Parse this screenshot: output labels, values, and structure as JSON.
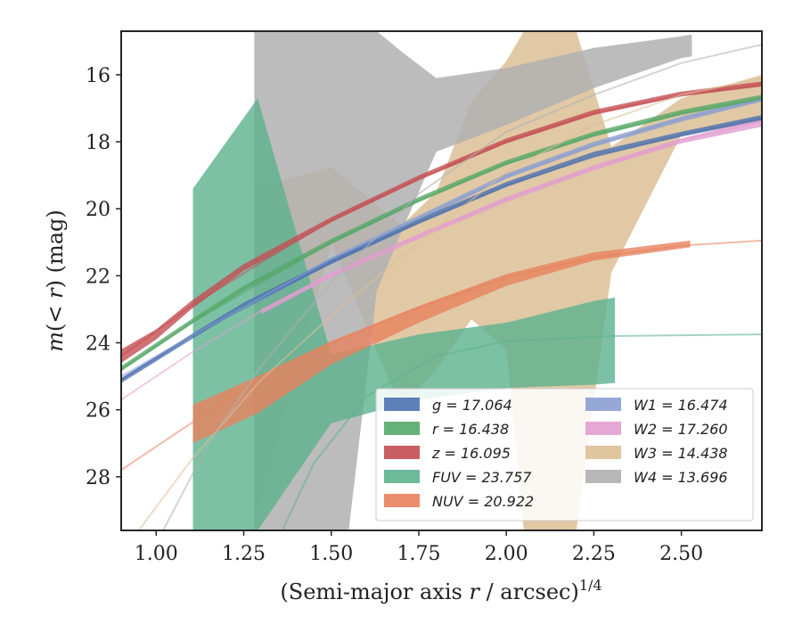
{
  "chart_data": {
    "type": "area",
    "xlabel_main": "(Semi-major axis ",
    "xlabel_var": "r",
    "xlabel_unit": " / arcsec)",
    "xlabel_exp": "1/4",
    "ylabel_m": "m",
    "ylabel_inner": "(< ",
    "ylabel_var": "r",
    "ylabel_close": ")",
    "ylabel_unit": " (mag)",
    "xlim": [
      0.9,
      2.73
    ],
    "ylim": [
      29.6,
      14.7
    ],
    "y_inverted": true,
    "grid": false,
    "legend_position": "lower-right",
    "x_ticks": [
      1.0,
      1.25,
      1.5,
      1.75,
      2.0,
      2.25,
      2.5
    ],
    "x_tick_labels": [
      "1.00",
      "1.25",
      "1.50",
      "1.75",
      "2.00",
      "2.25",
      "2.50"
    ],
    "y_ticks": [
      16,
      18,
      20,
      22,
      24,
      26,
      28
    ],
    "y_tick_labels": [
      "16",
      "18",
      "20",
      "22",
      "24",
      "26",
      "28"
    ],
    "series": [
      {
        "name": "g",
        "label": "g = 17.064",
        "color": "#4c72b0",
        "band": [
          [
            0.9,
            25.2,
            25.05
          ],
          [
            1.0,
            24.55,
            24.4
          ],
          [
            1.1,
            23.9,
            23.75
          ],
          [
            1.25,
            22.95,
            22.8
          ],
          [
            1.5,
            21.65,
            21.5
          ],
          [
            1.75,
            20.45,
            20.3
          ],
          [
            2.0,
            19.35,
            19.2
          ],
          [
            2.25,
            18.45,
            18.3
          ],
          [
            2.5,
            17.85,
            17.7
          ],
          [
            2.73,
            17.35,
            17.2
          ]
        ],
        "model": [
          [
            0.9,
            25.1
          ],
          [
            1.1,
            23.8
          ],
          [
            1.3,
            22.7
          ],
          [
            1.5,
            21.6
          ],
          [
            1.75,
            20.4
          ],
          [
            2.0,
            19.3
          ],
          [
            2.25,
            18.45
          ],
          [
            2.5,
            17.8
          ],
          [
            2.73,
            17.3
          ]
        ]
      },
      {
        "name": "r",
        "label": "r = 16.438",
        "color": "#55a868",
        "band": [
          [
            0.9,
            24.85,
            24.7
          ],
          [
            1.0,
            24.15,
            24.0
          ],
          [
            1.1,
            23.45,
            23.3
          ],
          [
            1.25,
            22.45,
            22.3
          ],
          [
            1.5,
            21.05,
            20.9
          ],
          [
            1.75,
            19.8,
            19.65
          ],
          [
            2.0,
            18.7,
            18.55
          ],
          [
            2.25,
            17.85,
            17.7
          ],
          [
            2.5,
            17.2,
            17.05
          ],
          [
            2.73,
            16.75,
            16.6
          ]
        ],
        "model": [
          [
            0.9,
            24.8
          ],
          [
            1.1,
            23.4
          ],
          [
            1.3,
            22.2
          ],
          [
            1.5,
            21.0
          ],
          [
            1.75,
            19.75
          ],
          [
            2.0,
            18.65
          ],
          [
            2.25,
            17.8
          ],
          [
            2.5,
            17.15
          ],
          [
            2.73,
            16.7
          ]
        ]
      },
      {
        "name": "z",
        "label": "z = 16.095",
        "color": "#c44e52",
        "band": [
          [
            0.9,
            24.6,
            24.2
          ],
          [
            1.0,
            23.9,
            23.6
          ],
          [
            1.1,
            23.0,
            22.75
          ],
          [
            1.25,
            21.85,
            21.65
          ],
          [
            1.5,
            20.4,
            20.25
          ],
          [
            1.75,
            19.15,
            19.0
          ],
          [
            2.0,
            18.05,
            17.9
          ],
          [
            2.25,
            17.2,
            17.05
          ],
          [
            2.5,
            16.65,
            16.5
          ],
          [
            2.73,
            16.35,
            16.2
          ]
        ],
        "model": [
          [
            0.9,
            24.4
          ],
          [
            1.1,
            22.9
          ],
          [
            1.3,
            21.6
          ],
          [
            1.5,
            20.35
          ],
          [
            1.75,
            19.1
          ],
          [
            2.0,
            18.0
          ],
          [
            2.25,
            17.15
          ],
          [
            2.5,
            16.6
          ],
          [
            2.73,
            16.3
          ]
        ]
      },
      {
        "name": "FUV",
        "label": "FUV = 23.757",
        "color": "#5db18f",
        "band": [
          [
            1.105,
            29.6,
            19.4
          ],
          [
            1.29,
            29.6,
            16.7
          ],
          [
            1.5,
            26.4,
            24.35
          ],
          [
            1.75,
            25.7,
            23.75
          ],
          [
            2.0,
            25.35,
            23.4
          ],
          [
            2.25,
            25.25,
            22.75
          ],
          [
            2.31,
            25.2,
            22.65
          ]
        ],
        "model": [
          [
            1.36,
            29.6
          ],
          [
            1.45,
            27.6
          ],
          [
            1.6,
            25.6
          ],
          [
            1.8,
            24.4
          ],
          [
            2.0,
            23.95
          ],
          [
            2.3,
            23.8
          ],
          [
            2.73,
            23.75
          ]
        ]
      },
      {
        "name": "NUV",
        "label": "NUV = 20.922",
        "color": "#e8825e",
        "band": [
          [
            1.105,
            27.0,
            25.85
          ],
          [
            1.29,
            26.1,
            25.0
          ],
          [
            1.5,
            24.65,
            23.95
          ],
          [
            1.75,
            23.4,
            22.9
          ],
          [
            2.0,
            22.3,
            21.95
          ],
          [
            2.25,
            21.55,
            21.3
          ],
          [
            2.525,
            21.15,
            20.95
          ]
        ],
        "model": [
          [
            0.9,
            27.8
          ],
          [
            1.1,
            26.4
          ],
          [
            1.3,
            25.0
          ],
          [
            1.5,
            24.0
          ],
          [
            1.75,
            22.95
          ],
          [
            2.0,
            22.05
          ],
          [
            2.25,
            21.45
          ],
          [
            2.5,
            21.1
          ],
          [
            2.73,
            20.95
          ]
        ]
      },
      {
        "name": "W1",
        "label": "W1 = 16.474",
        "color": "#8b9fd1",
        "band": [
          [
            1.3,
            22.75,
            22.6
          ],
          [
            1.5,
            21.6,
            21.45
          ],
          [
            1.75,
            20.35,
            20.2
          ],
          [
            2.0,
            19.1,
            18.95
          ],
          [
            2.25,
            18.15,
            18.0
          ],
          [
            2.5,
            17.4,
            17.25
          ],
          [
            2.73,
            16.8,
            16.65
          ]
        ],
        "model": [
          [
            0.9,
            25.0
          ],
          [
            1.1,
            23.8
          ],
          [
            1.3,
            22.65
          ],
          [
            1.5,
            21.5
          ],
          [
            1.75,
            20.3
          ],
          [
            2.0,
            19.05
          ],
          [
            2.25,
            18.1
          ],
          [
            2.5,
            17.3
          ],
          [
            2.73,
            16.75
          ]
        ]
      },
      {
        "name": "W2",
        "label": "W2 = 17.260",
        "color": "#e29ed0",
        "band": [
          [
            1.3,
            23.15,
            23.0
          ],
          [
            1.5,
            22.05,
            21.9
          ],
          [
            1.75,
            20.9,
            20.75
          ],
          [
            2.0,
            19.8,
            19.65
          ],
          [
            2.25,
            18.85,
            18.7
          ],
          [
            2.5,
            18.05,
            17.9
          ],
          [
            2.73,
            17.55,
            17.3
          ]
        ],
        "model": [
          [
            0.9,
            25.7
          ],
          [
            1.1,
            24.3
          ],
          [
            1.3,
            23.05
          ],
          [
            1.5,
            21.95
          ],
          [
            1.75,
            20.8
          ],
          [
            2.0,
            19.7
          ],
          [
            2.25,
            18.8
          ],
          [
            2.5,
            17.95
          ],
          [
            2.73,
            17.4
          ]
        ]
      },
      {
        "name": "W3",
        "label": "W3 = 14.438",
        "color": "#dcbf96",
        "band": [
          [
            1.28,
            29.6,
            19.4
          ],
          [
            1.5,
            21.0,
            18.75
          ],
          [
            1.7,
            26.0,
            20.5
          ],
          [
            1.8,
            24.8,
            19.5
          ],
          [
            1.9,
            23.3,
            16.8
          ],
          [
            2.0,
            24.2,
            15.6
          ],
          [
            2.05,
            29.6,
            14.7
          ],
          [
            2.2,
            29.6,
            14.7
          ],
          [
            2.3,
            21.9,
            18.15
          ],
          [
            2.5,
            17.8,
            16.7
          ],
          [
            2.73,
            17.4,
            16.0
          ]
        ],
        "model": [
          [
            0.9,
            30.3
          ],
          [
            1.1,
            27.5
          ],
          [
            1.3,
            25.1
          ],
          [
            1.5,
            23.2
          ],
          [
            1.75,
            21.0
          ],
          [
            2.0,
            18.9
          ],
          [
            2.25,
            17.5
          ],
          [
            2.5,
            16.6
          ],
          [
            2.73,
            16.1
          ]
        ]
      },
      {
        "name": "W4",
        "label": "W4 = 13.696",
        "color": "#b0b0b0",
        "band": [
          [
            1.28,
            29.6,
            14.7
          ],
          [
            1.45,
            29.6,
            14.7
          ],
          [
            1.55,
            29.6,
            14.7
          ],
          [
            1.63,
            22.45,
            14.7
          ],
          [
            1.7,
            20.7,
            15.3
          ],
          [
            1.8,
            18.3,
            16.1
          ],
          [
            2.0,
            17.5,
            15.8
          ],
          [
            2.25,
            16.4,
            15.2
          ],
          [
            2.5,
            15.5,
            14.85
          ],
          [
            2.53,
            15.45,
            14.8
          ]
        ],
        "model": [
          [
            1.02,
            29.6
          ],
          [
            1.15,
            27.0
          ],
          [
            1.3,
            24.7
          ],
          [
            1.5,
            22.2
          ],
          [
            1.75,
            19.55
          ],
          [
            2.0,
            17.7
          ],
          [
            2.25,
            16.6
          ],
          [
            2.5,
            15.65
          ],
          [
            2.73,
            15.1
          ]
        ]
      }
    ]
  }
}
